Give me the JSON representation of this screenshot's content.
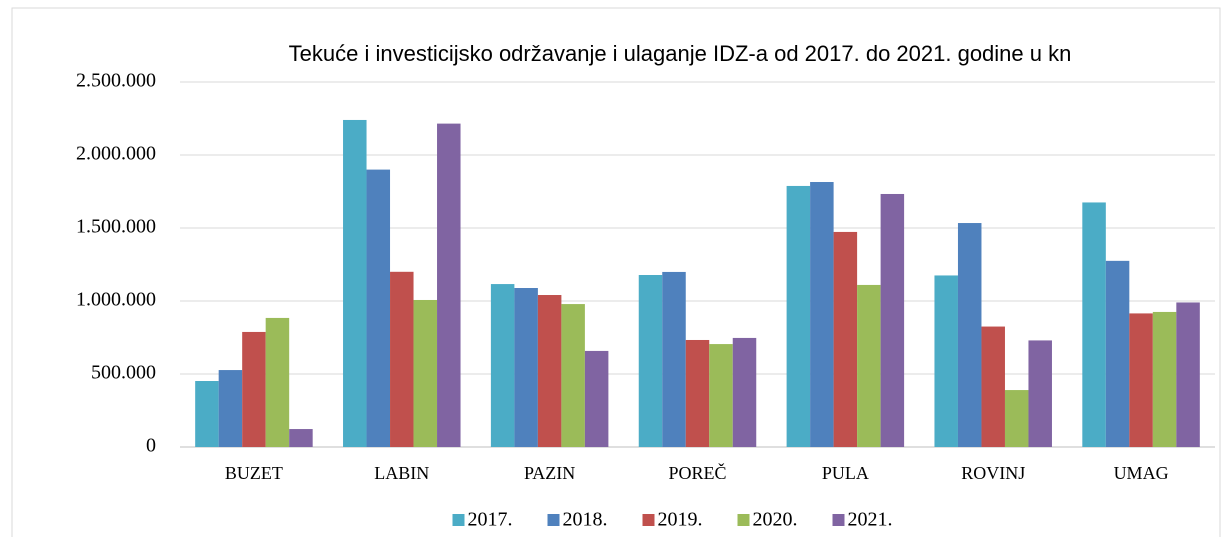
{
  "chart_data": {
    "type": "bar",
    "title": "Tekuće i  investicijsko održavanje i ulaganje IDZ-a od 2017. do 2021. godine u kn",
    "categories": [
      "BUZET",
      "LABIN",
      "PAZIN",
      "POREČ",
      "PULA",
      "ROVINJ",
      "UMAG"
    ],
    "series": [
      {
        "name": "2017.",
        "color": "#4bacc6",
        "values": [
          452000,
          2240000,
          1116000,
          1178000,
          1788000,
          1175000,
          1675000
        ]
      },
      {
        "name": "2018.",
        "color": "#4f81bd",
        "values": [
          527000,
          1900000,
          1089000,
          1199000,
          1815000,
          1534000,
          1275000
        ]
      },
      {
        "name": "2019.",
        "color": "#c0504d",
        "values": [
          788000,
          1200000,
          1041000,
          733000,
          1473000,
          825000,
          915000
        ]
      },
      {
        "name": "2020.",
        "color": "#9bbb59",
        "values": [
          884000,
          1007000,
          979000,
          705000,
          1110000,
          390000,
          925000
        ]
      },
      {
        "name": "2021.",
        "color": "#8064a2",
        "values": [
          123000,
          2215000,
          658000,
          747000,
          1733000,
          730000,
          990000
        ]
      }
    ],
    "ylim": [
      0,
      2500000
    ],
    "yticks": [
      0,
      {
        "value": 500000,
        "label": "500.000"
      },
      {
        "value": 1000000,
        "label": "1.000.000"
      },
      {
        "value": 1500000,
        "label": "1.500.000"
      },
      {
        "value": 2000000,
        "label": "2.000.000"
      },
      {
        "value": 2500000,
        "label": "2.500.000"
      }
    ],
    "grid": true,
    "legend": "bottom"
  }
}
